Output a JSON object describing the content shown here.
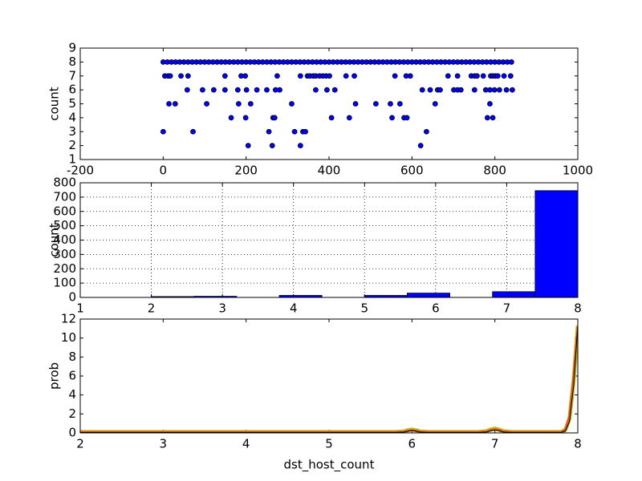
{
  "chart_data": [
    {
      "type": "scatter",
      "ylabel": "count",
      "color": "#0000ff",
      "xlim": [
        -200,
        1000
      ],
      "xticks": [
        -200,
        0,
        200,
        400,
        600,
        800,
        1000
      ],
      "ylim": [
        1,
        9
      ],
      "yticks": [
        1,
        2,
        3,
        4,
        5,
        6,
        7,
        8,
        9
      ],
      "grid": false,
      "x": [
        0,
        10,
        20,
        30,
        40,
        50,
        60,
        70,
        80,
        90,
        100,
        110,
        120,
        130,
        140,
        150,
        160,
        170,
        180,
        190,
        200,
        210,
        220,
        230,
        240,
        250,
        260,
        270,
        280,
        290,
        300,
        310,
        320,
        330,
        340,
        350,
        360,
        370,
        380,
        390,
        400,
        410,
        420,
        430,
        440,
        450,
        460,
        470,
        480,
        490,
        500,
        510,
        520,
        530,
        540,
        550,
        560,
        570,
        580,
        590,
        600,
        610,
        620,
        630,
        640,
        650,
        660,
        670,
        680,
        690,
        700,
        710,
        720,
        730,
        740,
        750,
        760,
        770,
        780,
        790,
        800,
        810,
        820,
        830,
        840,
        4,
        12,
        17,
        43,
        60,
        149,
        188,
        198,
        275,
        331,
        348,
        354,
        362,
        368,
        377,
        385,
        393,
        401,
        441,
        461,
        559,
        586,
        596,
        687,
        710,
        743,
        751,
        757,
        772,
        790,
        795,
        801,
        807,
        822,
        838,
        58,
        95,
        122,
        149,
        180,
        201,
        226,
        250,
        271,
        281,
        368,
        395,
        414,
        625,
        644,
        662,
        668,
        701,
        710,
        718,
        751,
        778,
        788,
        799,
        811,
        828,
        842,
        14,
        29,
        105,
        182,
        211,
        310,
        464,
        513,
        548,
        571,
        656,
        788,
        164,
        199,
        265,
        269,
        406,
        449,
        552,
        581,
        588,
        782,
        795,
        0,
        72,
        255,
        317,
        337,
        343,
        635,
        205,
        263,
        331,
        621
      ],
      "values": [
        8,
        8,
        8,
        8,
        8,
        8,
        8,
        8,
        8,
        8,
        8,
        8,
        8,
        8,
        8,
        8,
        8,
        8,
        8,
        8,
        8,
        8,
        8,
        8,
        8,
        8,
        8,
        8,
        8,
        8,
        8,
        8,
        8,
        8,
        8,
        8,
        8,
        8,
        8,
        8,
        8,
        8,
        8,
        8,
        8,
        8,
        8,
        8,
        8,
        8,
        8,
        8,
        8,
        8,
        8,
        8,
        8,
        8,
        8,
        8,
        8,
        8,
        8,
        8,
        8,
        8,
        8,
        8,
        8,
        8,
        8,
        8,
        8,
        8,
        8,
        8,
        8,
        8,
        8,
        8,
        8,
        8,
        8,
        8,
        8,
        7,
        7,
        7,
        7,
        7,
        7,
        7,
        7,
        7,
        7,
        7,
        7,
        7,
        7,
        7,
        7,
        7,
        7,
        7,
        7,
        7,
        7,
        7,
        7,
        7,
        7,
        7,
        7,
        7,
        7,
        7,
        7,
        7,
        7,
        7,
        6,
        6,
        6,
        6,
        6,
        6,
        6,
        6,
        6,
        6,
        6,
        6,
        6,
        6,
        6,
        6,
        6,
        6,
        6,
        6,
        6,
        6,
        6,
        6,
        6,
        6,
        6,
        5,
        5,
        5,
        5,
        5,
        5,
        5,
        5,
        5,
        5,
        5,
        5,
        4,
        4,
        4,
        4,
        4,
        4,
        4,
        4,
        4,
        4,
        4,
        3,
        3,
        3,
        3,
        3,
        3,
        3,
        2,
        2,
        2,
        2
      ]
    },
    {
      "type": "histogram",
      "ylabel": "count",
      "color": "#0000ff",
      "xlim": [
        1,
        8
      ],
      "xticks": [
        1,
        2,
        3,
        4,
        5,
        6,
        7,
        8
      ],
      "ylim": [
        0,
        800
      ],
      "yticks": [
        0,
        100,
        200,
        300,
        400,
        500,
        600,
        700,
        800
      ],
      "grid": true,
      "bins": [
        2,
        2.6,
        3.2,
        3.8,
        4.4,
        5.0,
        5.6,
        6.2,
        6.8,
        7.4,
        8
      ],
      "counts": [
        6,
        8,
        0,
        14,
        0,
        14,
        30,
        0,
        40,
        745
      ]
    },
    {
      "type": "line",
      "xlabel": "dst_host_count",
      "ylabel": "prob",
      "xlim": [
        2,
        8
      ],
      "xticks": [
        2,
        3,
        4,
        5,
        6,
        7,
        8
      ],
      "ylim": [
        0,
        12
      ],
      "yticks": [
        0,
        2,
        4,
        6,
        8,
        10,
        12
      ],
      "grid": false,
      "x": [
        2,
        5.8,
        5.9,
        5.95,
        6,
        6.05,
        6.1,
        6.2,
        6.8,
        6.9,
        6.95,
        7,
        7.05,
        7.1,
        7.2,
        7.8,
        7.85,
        7.9,
        7.95,
        7.98,
        8
      ],
      "series": [
        {
          "color": "#bcbd22",
          "width": 5,
          "values": [
            0.1,
            0.1,
            0.15,
            0.28,
            0.35,
            0.28,
            0.15,
            0.1,
            0.1,
            0.18,
            0.35,
            0.45,
            0.35,
            0.18,
            0.1,
            0.1,
            0.3,
            1.5,
            5.5,
            9,
            11.3
          ]
        },
        {
          "color": "#e8531f",
          "width": 2.5,
          "values": [
            0.1,
            0.1,
            0.13,
            0.22,
            0.28,
            0.22,
            0.13,
            0.1,
            0.1,
            0.15,
            0.3,
            0.38,
            0.3,
            0.15,
            0.1,
            0.1,
            0.35,
            1.8,
            6,
            9.3,
            11.2
          ]
        },
        {
          "color": "#000000",
          "width": 1,
          "values": [
            0.05,
            0.05,
            0.08,
            0.18,
            0.25,
            0.18,
            0.08,
            0.05,
            0.05,
            0.1,
            0.22,
            0.3,
            0.22,
            0.1,
            0.05,
            0.05,
            0.2,
            1.2,
            5,
            8.8,
            11.4
          ]
        }
      ]
    }
  ]
}
